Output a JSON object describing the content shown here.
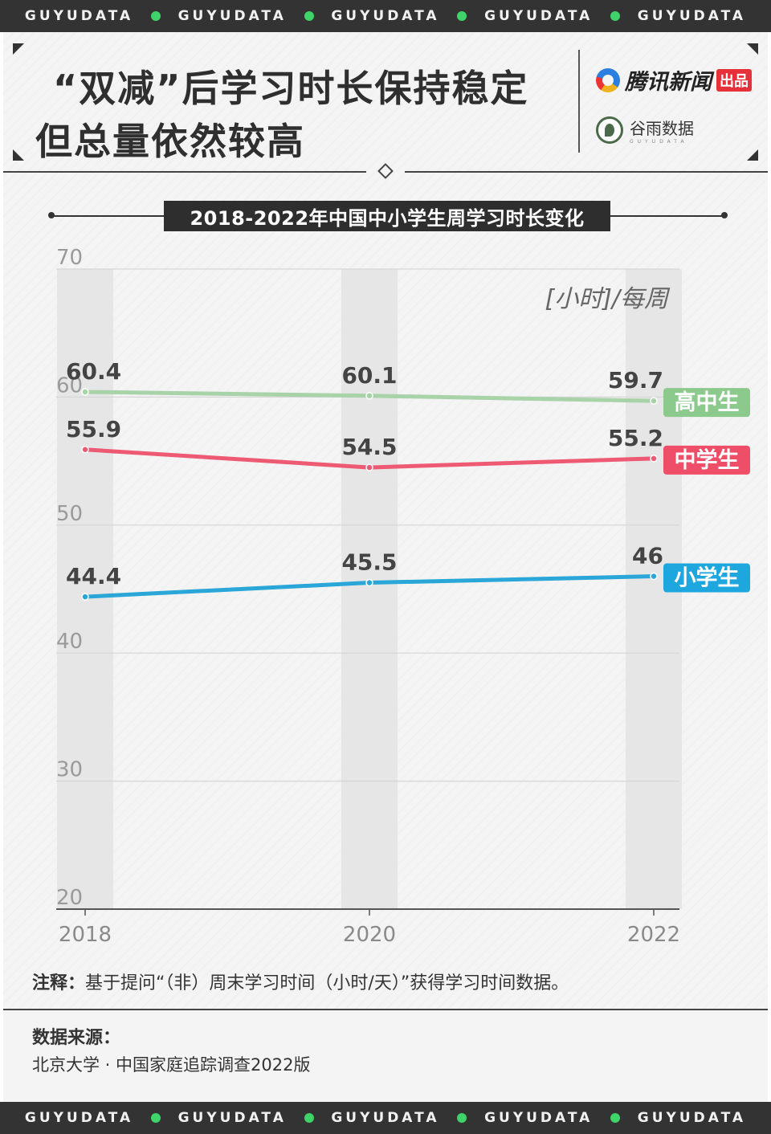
{
  "band_text": "GUYUDATA",
  "header": {
    "title_line1": "“双减”后学习时长保持稳定",
    "title_line2": "但总量依然较高",
    "brand1_name": "腾讯新闻",
    "brand1_tag": "出品",
    "brand2_name": "谷雨数据",
    "brand2_sub": "GUYUDATA"
  },
  "chart_data": {
    "type": "line",
    "title": "2018-2022年中国中小学生周学习时长变化",
    "unit_label": "[小时]/每周",
    "x": [
      "2018",
      "2020",
      "2022"
    ],
    "ylim": [
      20,
      70
    ],
    "yticks": [
      70,
      60,
      50,
      40,
      30,
      20
    ],
    "grid": true,
    "legend_placement": "right-inline",
    "series": [
      {
        "name": "高中生",
        "values": [
          60.4,
          60.1,
          59.7
        ],
        "labels": [
          "60.4",
          "60.1",
          "59.7"
        ],
        "color": "#a8d2a8",
        "tag_color": "#8cc98c"
      },
      {
        "name": "中学生",
        "values": [
          55.9,
          54.5,
          55.2
        ],
        "labels": [
          "55.9",
          "54.5",
          "55.2"
        ],
        "color": "#ee5a73",
        "tag_color": "#ee4e68"
      },
      {
        "name": "小学生",
        "values": [
          44.4,
          45.5,
          46
        ],
        "labels": [
          "44.4",
          "45.5",
          "46"
        ],
        "color": "#2aa6d8",
        "tag_color": "#1ea6de"
      }
    ]
  },
  "note": {
    "label": "注释：",
    "text": "基于提问“（非）周末学习时间（小时/天）”获得学习时间数据。"
  },
  "source": {
    "label": "数据来源：",
    "text": "北京大学 · 中国家庭追踪调查2022版"
  },
  "colors": {
    "band": "#333333",
    "band_dot": "#3fd46a",
    "background": "#f4f4f4"
  }
}
